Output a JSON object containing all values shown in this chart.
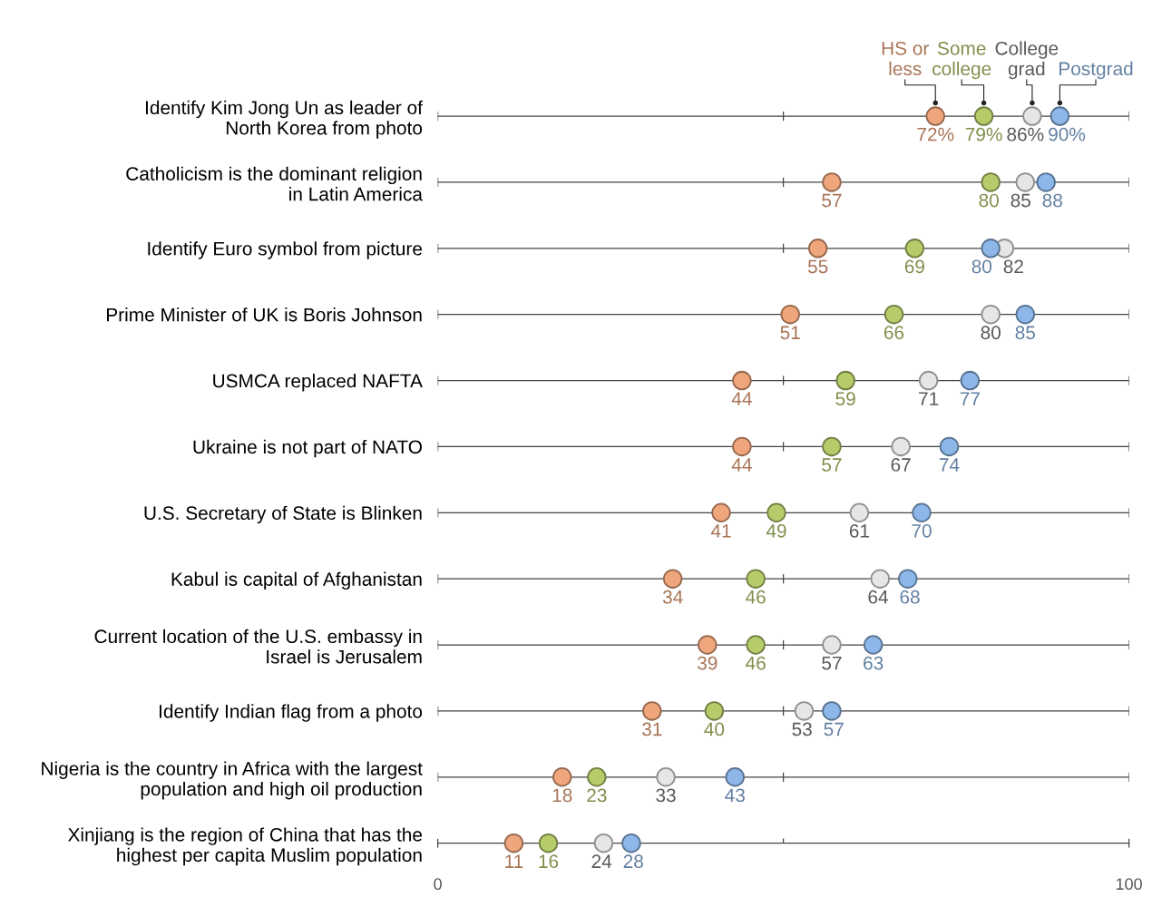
{
  "chart_data": {
    "type": "scatter",
    "categories": [
      "Identify Kim Jong Un as leader of\nNorth Korea from photo",
      "Catholicism is the dominant religion\nin Latin America",
      "Identify Euro symbol from picture",
      "Prime Minister of UK is Boris Johnson",
      "USMCA replaced NAFTA",
      "Ukraine is not part of NATO",
      "U.S. Secretary of State is Blinken",
      "Kabul is capital of Afghanistan",
      "Current location of the U.S. embassy in\nIsrael is Jerusalem",
      "Identify Indian flag from a photo",
      "Nigeria is the country in Africa with the largest\npopulation and high oil production",
      "Xinjiang is the region of China that has the\nhighest per capita Muslim population"
    ],
    "series": [
      {
        "name": "HS or\nless",
        "color": "#f0a67c",
        "values": [
          72,
          57,
          55,
          51,
          44,
          44,
          41,
          34,
          39,
          31,
          18,
          11
        ],
        "value_labels": [
          "72%",
          "57",
          "55",
          "51",
          "44",
          "44",
          "41",
          "34",
          "39",
          "31",
          "18",
          "11"
        ]
      },
      {
        "name": "Some\ncollege",
        "color": "#b6cc6b",
        "values": [
          79,
          80,
          69,
          66,
          59,
          57,
          49,
          46,
          46,
          40,
          23,
          16
        ],
        "value_labels": [
          "79%",
          "80",
          "69",
          "66",
          "59",
          "57",
          "49",
          "46",
          "46",
          "40",
          "23",
          "16"
        ]
      },
      {
        "name": "College\ngrad",
        "color": "#e6e6e6",
        "values": [
          86,
          85,
          82,
          80,
          71,
          67,
          61,
          64,
          57,
          53,
          33,
          24
        ],
        "value_labels": [
          "86%",
          "85",
          "82",
          "80",
          "71",
          "67",
          "61",
          "64",
          "57",
          "53",
          "33",
          "24"
        ]
      },
      {
        "name": "Postgrad",
        "color": "#8cb7e8",
        "values": [
          90,
          88,
          80,
          85,
          77,
          74,
          70,
          68,
          63,
          57,
          43,
          28
        ],
        "value_labels": [
          "90%",
          "88",
          "80",
          "85",
          "77",
          "74",
          "70",
          "68",
          "63",
          "57",
          "43",
          "28"
        ]
      }
    ],
    "xlim": [
      0,
      100
    ],
    "xticks": [
      0,
      100
    ],
    "grid": "y",
    "marker": "circle",
    "orientation": "horizontal"
  }
}
